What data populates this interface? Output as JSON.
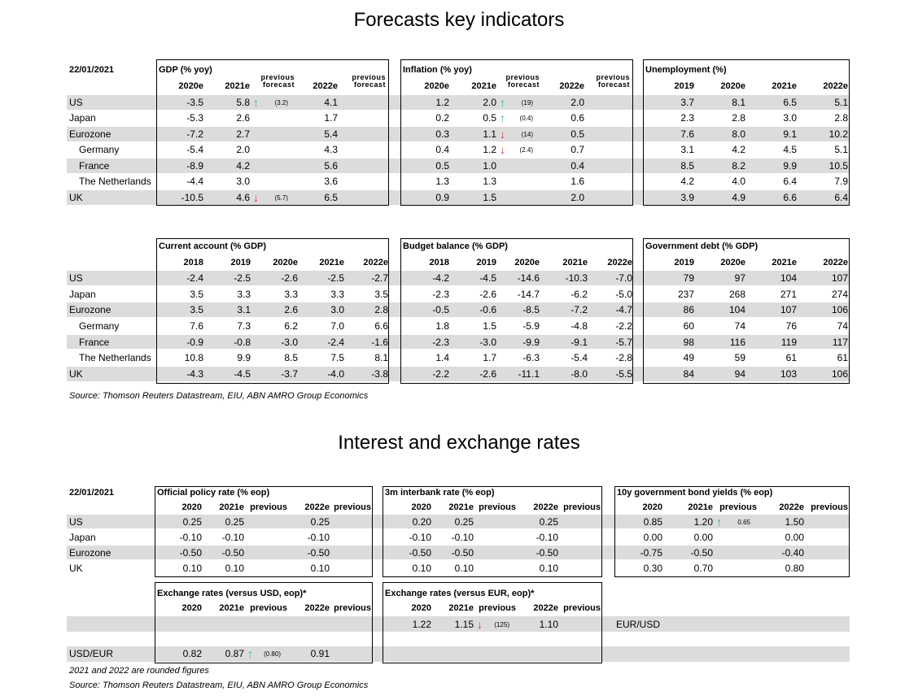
{
  "forecasts": {
    "title": "Forecasts key indicators",
    "date": "22/01/2021",
    "countries": [
      "US",
      "Japan",
      "Eurozone",
      "Germany",
      "France",
      "The Netherlands",
      "UK"
    ],
    "top_blocks": [
      {
        "title": "GDP (% yoy)",
        "cols": [
          "2020e",
          "2021e",
          "previous forecast",
          "2022e",
          "previous forecast"
        ],
        "rows": [
          [
            "-3.5",
            "5.8",
            {
              "arrow": "↑",
              "arrow_color": "#3aae94",
              "value": "(3.2)"
            },
            "4.1",
            null
          ],
          [
            "-5.3",
            "2.6",
            null,
            "1.7",
            null
          ],
          [
            "-7.2",
            "2.7",
            null,
            "5.4",
            null
          ],
          [
            "-5.4",
            "2.0",
            null,
            "4.3",
            null
          ],
          [
            "-8.9",
            "4.2",
            null,
            "5.6",
            null
          ],
          [
            "-4.4",
            "3.0",
            null,
            "3.6",
            null
          ],
          [
            "-10.5",
            "4.6",
            {
              "arrow": "↓",
              "arrow_color": "#e2332b",
              "value": "(5.7)"
            },
            "6.5",
            null
          ]
        ]
      },
      {
        "title": "Inflation (% yoy)",
        "cols": [
          "2020e",
          "2021e",
          "previous forecast",
          "2022e",
          "previous forecast"
        ],
        "rows": [
          [
            "1.2",
            "2.0",
            {
              "arrow": "↑",
              "arrow_color": "#3aae94",
              "value": "(19)"
            },
            "2.0",
            null
          ],
          [
            "0.2",
            "0.5",
            {
              "arrow": "↑",
              "arrow_color": "#3aae94",
              "value": "(0.4)"
            },
            "0.6",
            null
          ],
          [
            "0.3",
            "1.1",
            {
              "arrow": "↓",
              "arrow_color": "#e2332b",
              "value": "(14)"
            },
            "0.5",
            null
          ],
          [
            "0.4",
            "1.2",
            {
              "arrow": "↓",
              "arrow_color": "#e2332b",
              "value": "(2.4)"
            },
            "0.7",
            null
          ],
          [
            "0.5",
            "1.0",
            null,
            "0.4",
            null
          ],
          [
            "1.3",
            "1.3",
            null,
            "1.6",
            null
          ],
          [
            "0.9",
            "1.5",
            null,
            "2.0",
            null
          ]
        ]
      },
      {
        "title": "Unemployment (%)",
        "cols": [
          "2019",
          "2020e",
          "2021e",
          "2022e"
        ],
        "rows": [
          [
            "3.7",
            "8.1",
            "6.5",
            "5.1"
          ],
          [
            "2.3",
            "2.8",
            "3.0",
            "2.8"
          ],
          [
            "7.6",
            "8.0",
            "9.1",
            "10.2"
          ],
          [
            "3.1",
            "4.2",
            "4.5",
            "5.1"
          ],
          [
            "8.5",
            "8.2",
            "9.9",
            "10.5"
          ],
          [
            "4.2",
            "4.0",
            "6.4",
            "7.9"
          ],
          [
            "3.9",
            "4.9",
            "6.6",
            "6.4"
          ]
        ]
      }
    ],
    "bottom_blocks": [
      {
        "title": "Current account (% GDP)",
        "cols": [
          "2018",
          "2019",
          "2020e",
          "2021e",
          "2022e"
        ],
        "rows": [
          [
            "-2.4",
            "-2.5",
            "-2.6",
            "-2.5",
            "-2.7"
          ],
          [
            "3.5",
            "3.3",
            "3.3",
            "3.3",
            "3.5"
          ],
          [
            "3.5",
            "3.1",
            "2.6",
            "3.0",
            "2.8"
          ],
          [
            "7.6",
            "7.3",
            "6.2",
            "7.0",
            "6.6"
          ],
          [
            "-0.9",
            "-0.8",
            "-3.0",
            "-2.4",
            "-1.6"
          ],
          [
            "10.8",
            "9.9",
            "8.5",
            "7.5",
            "8.1"
          ],
          [
            "-4.3",
            "-4.5",
            "-3.7",
            "-4.0",
            "-3.8"
          ]
        ]
      },
      {
        "title": "Budget balance (% GDP)",
        "cols": [
          "2018",
          "2019",
          "2020e",
          "2021e",
          "2022e"
        ],
        "rows": [
          [
            "-4.2",
            "-4.5",
            "-14.6",
            "-10.3",
            "-7.0"
          ],
          [
            "-2.3",
            "-2.6",
            "-14.7",
            "-6.2",
            "-5.0"
          ],
          [
            "-0.5",
            "-0.6",
            "-8.5",
            "-7.2",
            "-4.7"
          ],
          [
            "1.8",
            "1.5",
            "-5.9",
            "-4.8",
            "-2.2"
          ],
          [
            "-2.3",
            "-3.0",
            "-9.9",
            "-9.1",
            "-5.7"
          ],
          [
            "1.4",
            "1.7",
            "-6.3",
            "-5.4",
            "-2.8"
          ],
          [
            "-2.2",
            "-2.6",
            "-11.1",
            "-8.0",
            "-5.5"
          ]
        ]
      },
      {
        "title": "Government debt (% GDP)",
        "cols": [
          "2019",
          "2020e",
          "2021e",
          "2022e"
        ],
        "rows": [
          [
            "79",
            "97",
            "104",
            "107"
          ],
          [
            "237",
            "268",
            "271",
            "274"
          ],
          [
            "86",
            "104",
            "107",
            "106"
          ],
          [
            "60",
            "74",
            "76",
            "74"
          ],
          [
            "98",
            "116",
            "119",
            "117"
          ],
          [
            "49",
            "59",
            "61",
            "61"
          ],
          [
            "84",
            "94",
            "103",
            "106"
          ]
        ]
      }
    ],
    "source": "Source: Thomson Reuters Datastream, EIU, ABN AMRO Group Economics"
  },
  "rates": {
    "title": "Interest and exchange rates",
    "date": "22/01/2021",
    "countries": [
      "US",
      "Japan",
      "Eurozone",
      "UK"
    ],
    "blocks": [
      {
        "title": "Official policy rate (% eop)",
        "cols": [
          "2020",
          "2021e",
          "previous",
          "2022e",
          "previous"
        ],
        "rows": [
          [
            "0.25",
            "0.25",
            null,
            "0.25",
            null
          ],
          [
            "-0.10",
            "-0.10",
            null,
            "-0.10",
            null
          ],
          [
            "-0.50",
            "-0.50",
            null,
            "-0.50",
            null
          ],
          [
            "0.10",
            "0.10",
            null,
            "0.10",
            null
          ]
        ]
      },
      {
        "title": "3m interbank rate (% eop)",
        "cols": [
          "2020",
          "2021e",
          "previous",
          "2022e",
          "previous"
        ],
        "rows": [
          [
            "0.20",
            "0.25",
            null,
            "0.25",
            null
          ],
          [
            "-0.10",
            "-0.10",
            null,
            "-0.10",
            null
          ],
          [
            "-0.50",
            "-0.50",
            null,
            "-0.50",
            null
          ],
          [
            "0.10",
            "0.10",
            null,
            "0.10",
            null
          ]
        ]
      },
      {
        "title": "10y government bond yields (% eop)",
        "cols": [
          "2020",
          "2021e",
          "previous",
          "2022e",
          "previous"
        ],
        "rows": [
          [
            "0.85",
            "1.20",
            {
              "arrow": "↑",
              "arrow_color": "#3aae94",
              "value": "0.65"
            },
            "1.50",
            null
          ],
          [
            "0.00",
            "0.00",
            null,
            "0.00",
            null
          ],
          [
            "-0.75",
            "-0.50",
            null,
            "-0.40",
            null
          ],
          [
            "0.30",
            "0.70",
            null,
            "0.80",
            null
          ]
        ]
      }
    ],
    "exchange": [
      {
        "title": "Exchange rates (versus USD, eop)*",
        "cols": [
          "2020",
          "2021e",
          "previous",
          "2022e",
          "previous"
        ],
        "pair": "USD/EUR",
        "row": [
          "0.82",
          "0.87",
          {
            "arrow": "↑",
            "arrow_color": "#3aae94",
            "value": "(0.80)"
          },
          "0.91",
          null
        ]
      },
      {
        "title": "Exchange rates (versus EUR, eop)*",
        "cols": [
          "2020",
          "2021e",
          "previous",
          "2022e",
          "previous"
        ],
        "pair": "EUR/USD",
        "row": [
          "1.22",
          "1.15",
          {
            "arrow": "↓",
            "arrow_color": "#e2332b",
            "value": "(125)"
          },
          "1.10",
          null
        ]
      }
    ],
    "note": "2021 and 2022 are rounded figures",
    "source": "Source: Thomson Reuters Datastream, EIU, ABN AMRO Group Economics"
  }
}
